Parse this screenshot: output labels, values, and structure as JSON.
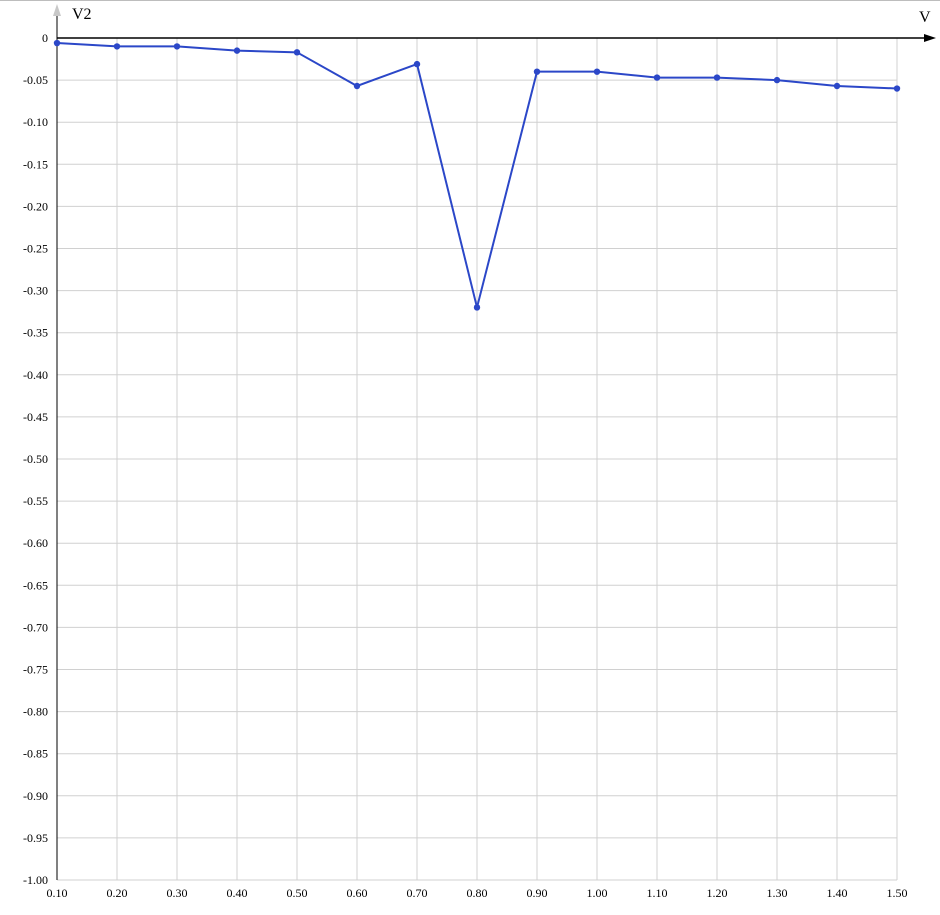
{
  "chart_data": {
    "type": "line",
    "title": "",
    "xlabel": "V",
    "ylabel": "V2",
    "x": [
      0.1,
      0.2,
      0.3,
      0.4,
      0.5,
      0.6,
      0.7,
      0.8,
      0.9,
      1.0,
      1.1,
      1.2,
      1.3,
      1.4,
      1.5
    ],
    "x_tick_labels": [
      "0.10",
      "0.20",
      "0.30",
      "0.40",
      "0.50",
      "0.60",
      "0.70",
      "0.80",
      "0.90",
      "1.00",
      "1.10",
      "1.20",
      "1.30",
      "1.40",
      "1.50"
    ],
    "y_ticks": [
      0,
      -0.05,
      -0.1,
      -0.15,
      -0.2,
      -0.25,
      -0.3,
      -0.35,
      -0.4,
      -0.45,
      -0.5,
      -0.55,
      -0.6,
      -0.65,
      -0.7,
      -0.75,
      -0.8,
      -0.85,
      -0.9,
      -0.95,
      -1.0
    ],
    "y_tick_labels": [
      "0",
      "-0.05",
      "-0.10",
      "-0.15",
      "-0.20",
      "-0.25",
      "-0.30",
      "-0.35",
      "-0.40",
      "-0.45",
      "-0.50",
      "-0.55",
      "-0.60",
      "-0.65",
      "-0.70",
      "-0.75",
      "-0.80",
      "-0.85",
      "-0.90",
      "-0.95",
      "-1.00"
    ],
    "xlim": [
      0.1,
      1.5
    ],
    "ylim": [
      -1.0,
      0
    ],
    "grid": true,
    "series": [
      {
        "color": "#2b47c8",
        "values": [
          -0.006,
          -0.01,
          -0.01,
          -0.015,
          -0.017,
          -0.057,
          -0.031,
          -0.32,
          -0.04,
          -0.04,
          -0.047,
          -0.047,
          -0.05,
          -0.057,
          -0.06
        ]
      }
    ]
  }
}
